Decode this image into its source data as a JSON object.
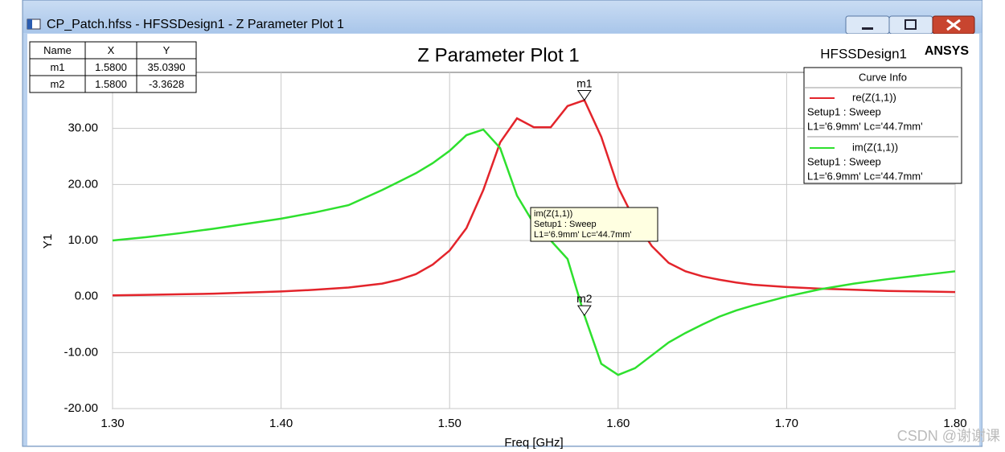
{
  "window": {
    "title": "CP_Patch.hfss - HFSSDesign1 - Z Parameter Plot 1"
  },
  "design_name": "HFSSDesign1",
  "brand": "ANSYS",
  "watermark": "CSDN @谢谢课",
  "marker_table": {
    "header": [
      "Name",
      "X",
      "Y"
    ],
    "rows": [
      [
        "m1",
        "1.5800",
        "35.0390"
      ],
      [
        "m2",
        "1.5800",
        "-3.3628"
      ]
    ]
  },
  "tooltip": [
    "im(Z(1,1))",
    "Setup1 : Sweep",
    "L1='6.9mm' Lc='44.7mm'"
  ],
  "legend_title": "Curve Info",
  "chart_data": {
    "type": "line",
    "title": "Z Parameter Plot 1",
    "x_label": "Freq [GHz]",
    "y_label": "Y1",
    "x": [
      1.3,
      1.32,
      1.34,
      1.36,
      1.38,
      1.4,
      1.42,
      1.44,
      1.46,
      1.47,
      1.48,
      1.49,
      1.5,
      1.51,
      1.52,
      1.53,
      1.54,
      1.55,
      1.56,
      1.57,
      1.58,
      1.59,
      1.6,
      1.61,
      1.62,
      1.63,
      1.64,
      1.65,
      1.66,
      1.67,
      1.68,
      1.7,
      1.72,
      1.74,
      1.76,
      1.78,
      1.8
    ],
    "series": [
      {
        "name": "re(Z(1,1))",
        "setup": "Setup1 : Sweep",
        "params": "L1='6.9mm' Lc='44.7mm'",
        "color": "#e3242b",
        "values": [
          0.2,
          0.3,
          0.4,
          0.5,
          0.7,
          0.9,
          1.2,
          1.6,
          2.3,
          3.0,
          4.0,
          5.7,
          8.2,
          12.2,
          19.0,
          27.5,
          31.8,
          30.2,
          30.2,
          34.0,
          35.039,
          28.5,
          19.5,
          13.5,
          9.0,
          6.0,
          4.5,
          3.6,
          3.0,
          2.5,
          2.1,
          1.7,
          1.4,
          1.2,
          1.0,
          0.9,
          0.8
        ]
      },
      {
        "name": "im(Z(1,1))",
        "setup": "Setup1 : Sweep",
        "params": "L1='6.9mm' Lc='44.7mm'",
        "color": "#2ee02e",
        "values": [
          10.0,
          10.6,
          11.3,
          12.1,
          13.0,
          13.9,
          15.0,
          16.3,
          19.0,
          20.5,
          22.0,
          23.8,
          26.0,
          28.8,
          29.8,
          26.5,
          18.0,
          13.0,
          10.0,
          6.7,
          -3.3628,
          -12.0,
          -14.0,
          -12.8,
          -10.5,
          -8.2,
          -6.5,
          -5.0,
          -3.6,
          -2.5,
          -1.6,
          0.0,
          1.3,
          2.3,
          3.1,
          3.8,
          4.5
        ]
      }
    ],
    "markers": [
      {
        "name": "m1",
        "x": 1.58,
        "y": 35.039
      },
      {
        "name": "m2",
        "x": 1.58,
        "y": -3.3628
      }
    ],
    "xlim": [
      1.3,
      1.8
    ],
    "xticks": [
      {
        "value": 1.3,
        "label": "1.30"
      },
      {
        "value": 1.4,
        "label": "1.40"
      },
      {
        "value": 1.5,
        "label": "1.50"
      },
      {
        "value": 1.6,
        "label": "1.60"
      },
      {
        "value": 1.7,
        "label": "1.70"
      },
      {
        "value": 1.8,
        "label": "1.80"
      }
    ],
    "ylim": [
      -20,
      40
    ],
    "yticks": [
      {
        "value": -20,
        "label": "-20.00"
      },
      {
        "value": -10,
        "label": "-10.00"
      },
      {
        "value": 0,
        "label": "0.00"
      },
      {
        "value": 10,
        "label": "10.00"
      },
      {
        "value": 20,
        "label": "20.00"
      },
      {
        "value": 30,
        "label": "30.00"
      }
    ],
    "grid": true
  }
}
